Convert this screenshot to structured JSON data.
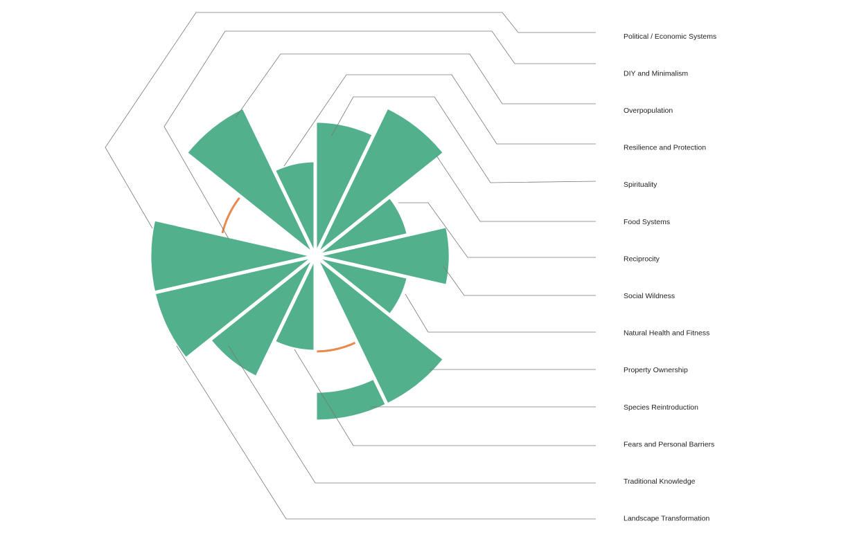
{
  "chart_data": {
    "type": "polar-bar",
    "categories": [
      "Political / Economic Systems",
      "DIY and Minimalism",
      "Overpopulation",
      "Resilience and Protection",
      "Spirituality",
      "Food Systems",
      "Reciprocity",
      "Social Wildness",
      "Natural Health and Fitness",
      "Property Ownership",
      "Species Reintroduction",
      "Fears and Personal Barriers",
      "Traditional Knowledge",
      "Landscape Transformation"
    ],
    "values": [
      3,
      0,
      3,
      1,
      2,
      3,
      1,
      2,
      1,
      3,
      3,
      1,
      2,
      3
    ],
    "bar_start": [
      0,
      0,
      0,
      0,
      0,
      0,
      0,
      0,
      0,
      0,
      2,
      0,
      0,
      0
    ],
    "reference_ring": 1,
    "color": "#52b08c",
    "ring_color": "#e8894d"
  }
}
